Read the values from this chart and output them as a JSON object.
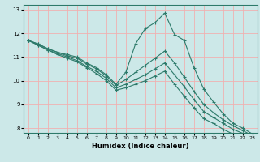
{
  "title": "",
  "xlabel": "Humidex (Indice chaleur)",
  "bg_color": "#cce8e8",
  "grid_color": "#f0b0b0",
  "line_color": "#2d7a6a",
  "xlim": [
    -0.5,
    23.5
  ],
  "ylim": [
    7.8,
    13.2
  ],
  "yticks": [
    8,
    9,
    10,
    11,
    12,
    13
  ],
  "xticks": [
    0,
    1,
    2,
    3,
    4,
    5,
    6,
    7,
    8,
    9,
    10,
    11,
    12,
    13,
    14,
    15,
    16,
    17,
    18,
    19,
    20,
    21,
    22,
    23
  ],
  "series": [
    {
      "x": [
        0,
        1,
        2,
        3,
        4,
        5,
        6,
        7,
        8,
        9,
        10,
        11,
        12,
        13,
        14,
        15,
        16,
        17,
        18,
        19,
        20,
        21,
        22,
        23
      ],
      "y": [
        11.7,
        11.55,
        11.35,
        11.2,
        11.1,
        11.0,
        10.75,
        10.55,
        10.25,
        9.85,
        10.35,
        11.55,
        12.2,
        12.45,
        12.85,
        11.95,
        11.7,
        10.55,
        9.65,
        9.1,
        8.6,
        8.2,
        8.0,
        7.75
      ]
    },
    {
      "x": [
        0,
        1,
        2,
        3,
        4,
        5,
        6,
        7,
        8,
        9,
        10,
        11,
        12,
        13,
        14,
        15,
        16,
        17,
        18,
        19,
        20,
        21,
        22,
        23
      ],
      "y": [
        11.7,
        11.55,
        11.35,
        11.2,
        11.05,
        10.95,
        10.7,
        10.5,
        10.2,
        9.8,
        10.05,
        10.35,
        10.65,
        10.95,
        11.25,
        10.75,
        10.15,
        9.55,
        9.0,
        8.65,
        8.35,
        8.1,
        7.9,
        7.68
      ]
    },
    {
      "x": [
        0,
        1,
        2,
        3,
        4,
        5,
        6,
        7,
        8,
        9,
        10,
        11,
        12,
        13,
        14,
        15,
        16,
        17,
        18,
        19,
        20,
        21,
        22,
        23
      ],
      "y": [
        11.7,
        11.5,
        11.3,
        11.15,
        11.0,
        10.85,
        10.6,
        10.4,
        10.1,
        9.7,
        9.85,
        10.05,
        10.25,
        10.5,
        10.75,
        10.25,
        9.75,
        9.2,
        8.7,
        8.45,
        8.2,
        7.95,
        7.78,
        7.6
      ]
    },
    {
      "x": [
        0,
        1,
        2,
        3,
        4,
        5,
        6,
        7,
        8,
        9,
        10,
        11,
        12,
        13,
        14,
        15,
        16,
        17,
        18,
        19,
        20,
        21,
        22,
        23
      ],
      "y": [
        11.7,
        11.5,
        11.3,
        11.1,
        10.95,
        10.8,
        10.55,
        10.3,
        10.0,
        9.6,
        9.7,
        9.85,
        10.0,
        10.2,
        10.4,
        9.85,
        9.35,
        8.85,
        8.4,
        8.2,
        7.95,
        7.75,
        7.6,
        7.45
      ]
    }
  ]
}
